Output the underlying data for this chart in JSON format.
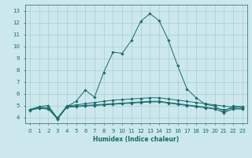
{
  "xlabel": "Humidex (Indice chaleur)",
  "ylabel": "",
  "bg_color": "#cce8ec",
  "grid_color": "#aacdd4",
  "line_color": "#1a6b6b",
  "xlim": [
    -0.5,
    23.5
  ],
  "ylim": [
    3.5,
    13.5
  ],
  "xticks": [
    0,
    1,
    2,
    3,
    4,
    5,
    6,
    7,
    8,
    9,
    10,
    11,
    12,
    13,
    14,
    15,
    16,
    17,
    18,
    19,
    20,
    21,
    22,
    23
  ],
  "yticks": [
    4,
    5,
    6,
    7,
    8,
    9,
    10,
    11,
    12,
    13
  ],
  "series": [
    [
      4.65,
      4.9,
      5.0,
      3.9,
      4.9,
      5.35,
      6.3,
      5.7,
      7.8,
      9.5,
      9.4,
      10.5,
      12.1,
      12.75,
      12.15,
      10.5,
      8.35,
      6.4,
      5.65,
      5.1,
      4.95,
      4.45,
      4.95,
      4.9
    ],
    [
      4.65,
      4.85,
      4.8,
      3.95,
      4.95,
      5.05,
      5.15,
      5.25,
      5.35,
      5.45,
      5.5,
      5.55,
      5.6,
      5.65,
      5.65,
      5.55,
      5.45,
      5.35,
      5.25,
      5.15,
      5.05,
      4.95,
      4.85,
      4.85
    ],
    [
      4.65,
      4.8,
      4.75,
      3.9,
      4.9,
      4.95,
      5.0,
      5.05,
      5.1,
      5.15,
      5.2,
      5.25,
      5.3,
      5.35,
      5.35,
      5.25,
      5.15,
      5.05,
      4.95,
      4.85,
      4.75,
      4.65,
      4.75,
      4.75
    ],
    [
      4.6,
      4.75,
      4.7,
      3.85,
      4.85,
      4.9,
      4.95,
      5.0,
      5.05,
      5.1,
      5.15,
      5.2,
      5.25,
      5.3,
      5.3,
      5.2,
      5.1,
      5.0,
      4.9,
      4.8,
      4.7,
      4.4,
      4.7,
      4.7
    ]
  ]
}
